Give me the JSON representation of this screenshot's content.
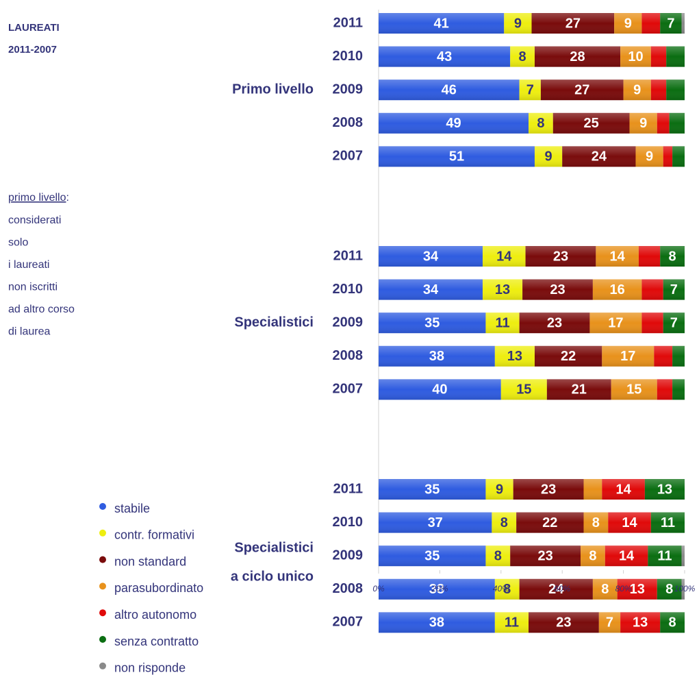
{
  "chart_data": {
    "type": "stacked-bar-horizontal",
    "title": [
      "LAUREATI",
      "2011-2007"
    ],
    "note_heading": "primo livello",
    "note_heading_suffix": ":",
    "note_lines": [
      "considerati",
      "solo",
      "i laureati",
      "non iscritti",
      "ad altro corso",
      "di laurea"
    ],
    "groups": [
      {
        "name": [
          "Primo livello"
        ],
        "categories": [
          "2011",
          "2010",
          "2009",
          "2008",
          "2007"
        ]
      },
      {
        "name": [
          "Specialistici"
        ],
        "categories": [
          "2011",
          "2010",
          "2009",
          "2008",
          "2007"
        ]
      },
      {
        "name": [
          "Specialistici",
          "a ciclo unico"
        ],
        "categories": [
          "2011",
          "2010",
          "2009",
          "2008",
          "2007"
        ]
      }
    ],
    "series": [
      {
        "name": "stabile",
        "color": "#2f5ce0",
        "values": [
          41,
          43,
          46,
          49,
          51,
          34,
          34,
          35,
          38,
          40,
          35,
          37,
          35,
          38,
          38
        ],
        "value_labels": [
          "41",
          "43",
          "46",
          "49",
          "51",
          "34",
          "34",
          "35",
          "38",
          "40",
          "35",
          "37",
          "35",
          "38",
          "38"
        ]
      },
      {
        "name": "contr. formativi",
        "color": "#eeee10",
        "values": [
          9,
          8,
          7,
          8,
          9,
          14,
          13,
          11,
          13,
          15,
          9,
          8,
          8,
          8,
          11
        ],
        "value_labels": [
          "9",
          "8",
          "7",
          "8",
          "9",
          "14",
          "13",
          "11",
          "13",
          "15",
          "9",
          "8",
          "8",
          "8",
          "11"
        ]
      },
      {
        "name": "non standard",
        "color": "#7a0c0c",
        "values": [
          27,
          28,
          27,
          25,
          24,
          23,
          23,
          23,
          22,
          21,
          23,
          22,
          23,
          24,
          23
        ],
        "value_labels": [
          "27",
          "28",
          "27",
          "25",
          "24",
          "23",
          "23",
          "23",
          "22",
          "21",
          "23",
          "22",
          "23",
          "24",
          "23"
        ]
      },
      {
        "name": "parasubordinato",
        "color": "#e8921c",
        "values": [
          9,
          10,
          9,
          9,
          9,
          14,
          16,
          17,
          17,
          15,
          6,
          8,
          8,
          8,
          7
        ],
        "value_labels": [
          "9",
          "10",
          "9",
          "9",
          "9",
          "14",
          "16",
          "17",
          "17",
          "15",
          null,
          "8",
          "8",
          "8",
          "7"
        ]
      },
      {
        "name": "altro autonomo",
        "color": "#e00a0a",
        "values": [
          6,
          5,
          5,
          4,
          3,
          7,
          7,
          7,
          6,
          5,
          14,
          14,
          14,
          13,
          13
        ],
        "value_labels": [
          null,
          null,
          null,
          null,
          null,
          null,
          null,
          null,
          null,
          null,
          "14",
          "14",
          "14",
          "13",
          "13"
        ]
      },
      {
        "name": "senza contratto",
        "color": "#0b6e12",
        "values": [
          7,
          6,
          6,
          5,
          4,
          8,
          7,
          7,
          4,
          4,
          13,
          11,
          11,
          8,
          8
        ],
        "value_labels": [
          "7",
          null,
          null,
          null,
          null,
          "8",
          "7",
          "7",
          null,
          null,
          "13",
          "11",
          "11",
          "8",
          "8"
        ]
      },
      {
        "name": "non risponde",
        "color": "#8a8a8a",
        "values": [
          1,
          0,
          0,
          0,
          0,
          0,
          0,
          0,
          0,
          0,
          0,
          0,
          1,
          1,
          0
        ],
        "value_labels": [
          null,
          null,
          null,
          null,
          null,
          null,
          null,
          null,
          null,
          null,
          null,
          null,
          null,
          null,
          null
        ]
      }
    ],
    "xlim": [
      0,
      100
    ],
    "xticks": [
      {
        "value": 0,
        "label": "0%"
      },
      {
        "value": 20,
        "label": "20%"
      },
      {
        "value": 40,
        "label": "40%"
      },
      {
        "value": 60,
        "label": "60%"
      },
      {
        "value": 80,
        "label": "80%"
      },
      {
        "value": 100,
        "label": "100%"
      }
    ],
    "grid": false
  }
}
